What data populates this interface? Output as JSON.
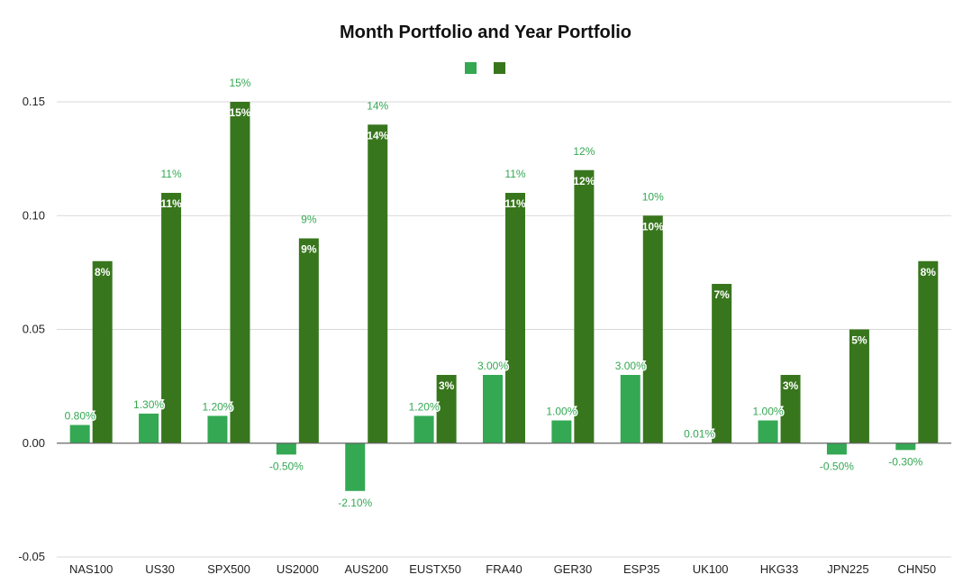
{
  "chart_data": {
    "type": "bar",
    "title": "Month Portfolio and Year Portfolio",
    "xlabel": "",
    "ylabel": "",
    "categories": [
      "NAS100",
      "US30",
      "SPX500",
      "US2000",
      "AUS200",
      "EUSTX50",
      "FRA40",
      "GER30",
      "ESP35",
      "UK100",
      "HKG33",
      "JPN225",
      "CHN50"
    ],
    "series": [
      {
        "color": "#34a853",
        "label_color": "#34a853",
        "values": [
          0.008,
          0.013,
          0.012,
          -0.005,
          -0.021,
          0.012,
          0.03,
          0.01,
          0.03,
          0.0001,
          0.01,
          -0.005,
          -0.003
        ],
        "labels": [
          "0.80%",
          "1.30%",
          "1.20%",
          "-0.50%",
          "-2.10%",
          "1.20%",
          "3.00%",
          "1.00%",
          "3.00%",
          "0.01%",
          "1.00%",
          "-0.50%",
          "-0.30%"
        ]
      },
      {
        "color": "#38761d",
        "label_color": "#34a853",
        "values": [
          0.08,
          0.11,
          0.15,
          0.09,
          0.14,
          0.03,
          0.11,
          0.12,
          0.1,
          0.07,
          0.03,
          0.05,
          0.08
        ],
        "labels": [
          "8%",
          "11%",
          "15%",
          "9%",
          "14%",
          "3%",
          "11%",
          "12%",
          "10%",
          "7%",
          "3%",
          "5%",
          "8%"
        ]
      }
    ],
    "ylim": [
      -0.05,
      0.15
    ],
    "yticks": [
      "-0.05",
      "0.00",
      "0.05",
      "0.10",
      "0.15"
    ],
    "ytick_values": [
      -0.05,
      0.0,
      0.05,
      0.1,
      0.15
    ],
    "grid": true,
    "legend_position": "top-center"
  }
}
